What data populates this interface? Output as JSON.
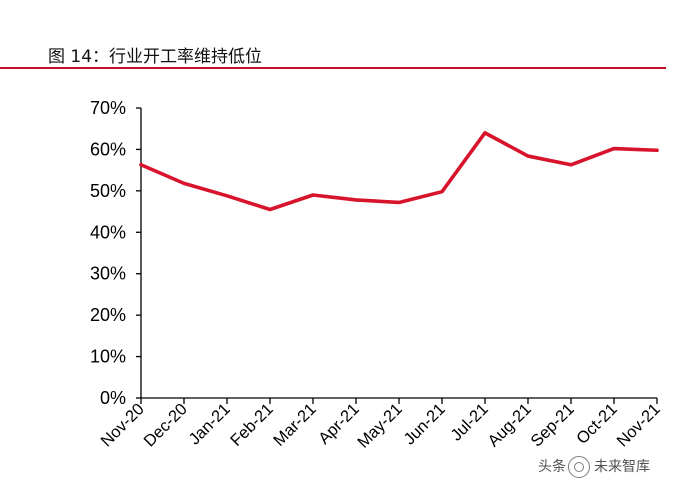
{
  "figure": {
    "title": "图 14：行业开工率维持低位"
  },
  "watermark": {
    "text_left": "头条",
    "text_right": "未来智库"
  },
  "chart_data": {
    "type": "line",
    "title": "",
    "xlabel": "",
    "ylabel": "",
    "categories": [
      "Nov-20",
      "Dec-20",
      "Jan-21",
      "Feb-21",
      "Mar-21",
      "Apr-21",
      "May-21",
      "Jun-21",
      "Jul-21",
      "Aug-21",
      "Sep-21",
      "Oct-21",
      "Nov-21"
    ],
    "series": [
      {
        "values": [
          56.3,
          51.8,
          48.8,
          45.5,
          49.0,
          47.8,
          47.2,
          49.8,
          64.0,
          58.4,
          56.3,
          60.2,
          59.8
        ],
        "color": "#d7142b"
      }
    ],
    "ylim": [
      0,
      70
    ],
    "yticks": [
      0,
      10,
      20,
      30,
      40,
      50,
      60,
      70
    ],
    "ytick_labels": [
      "0%",
      "10%",
      "20%",
      "30%",
      "40%",
      "50%",
      "60%",
      "70%"
    ],
    "grid": false,
    "legend": "none"
  }
}
